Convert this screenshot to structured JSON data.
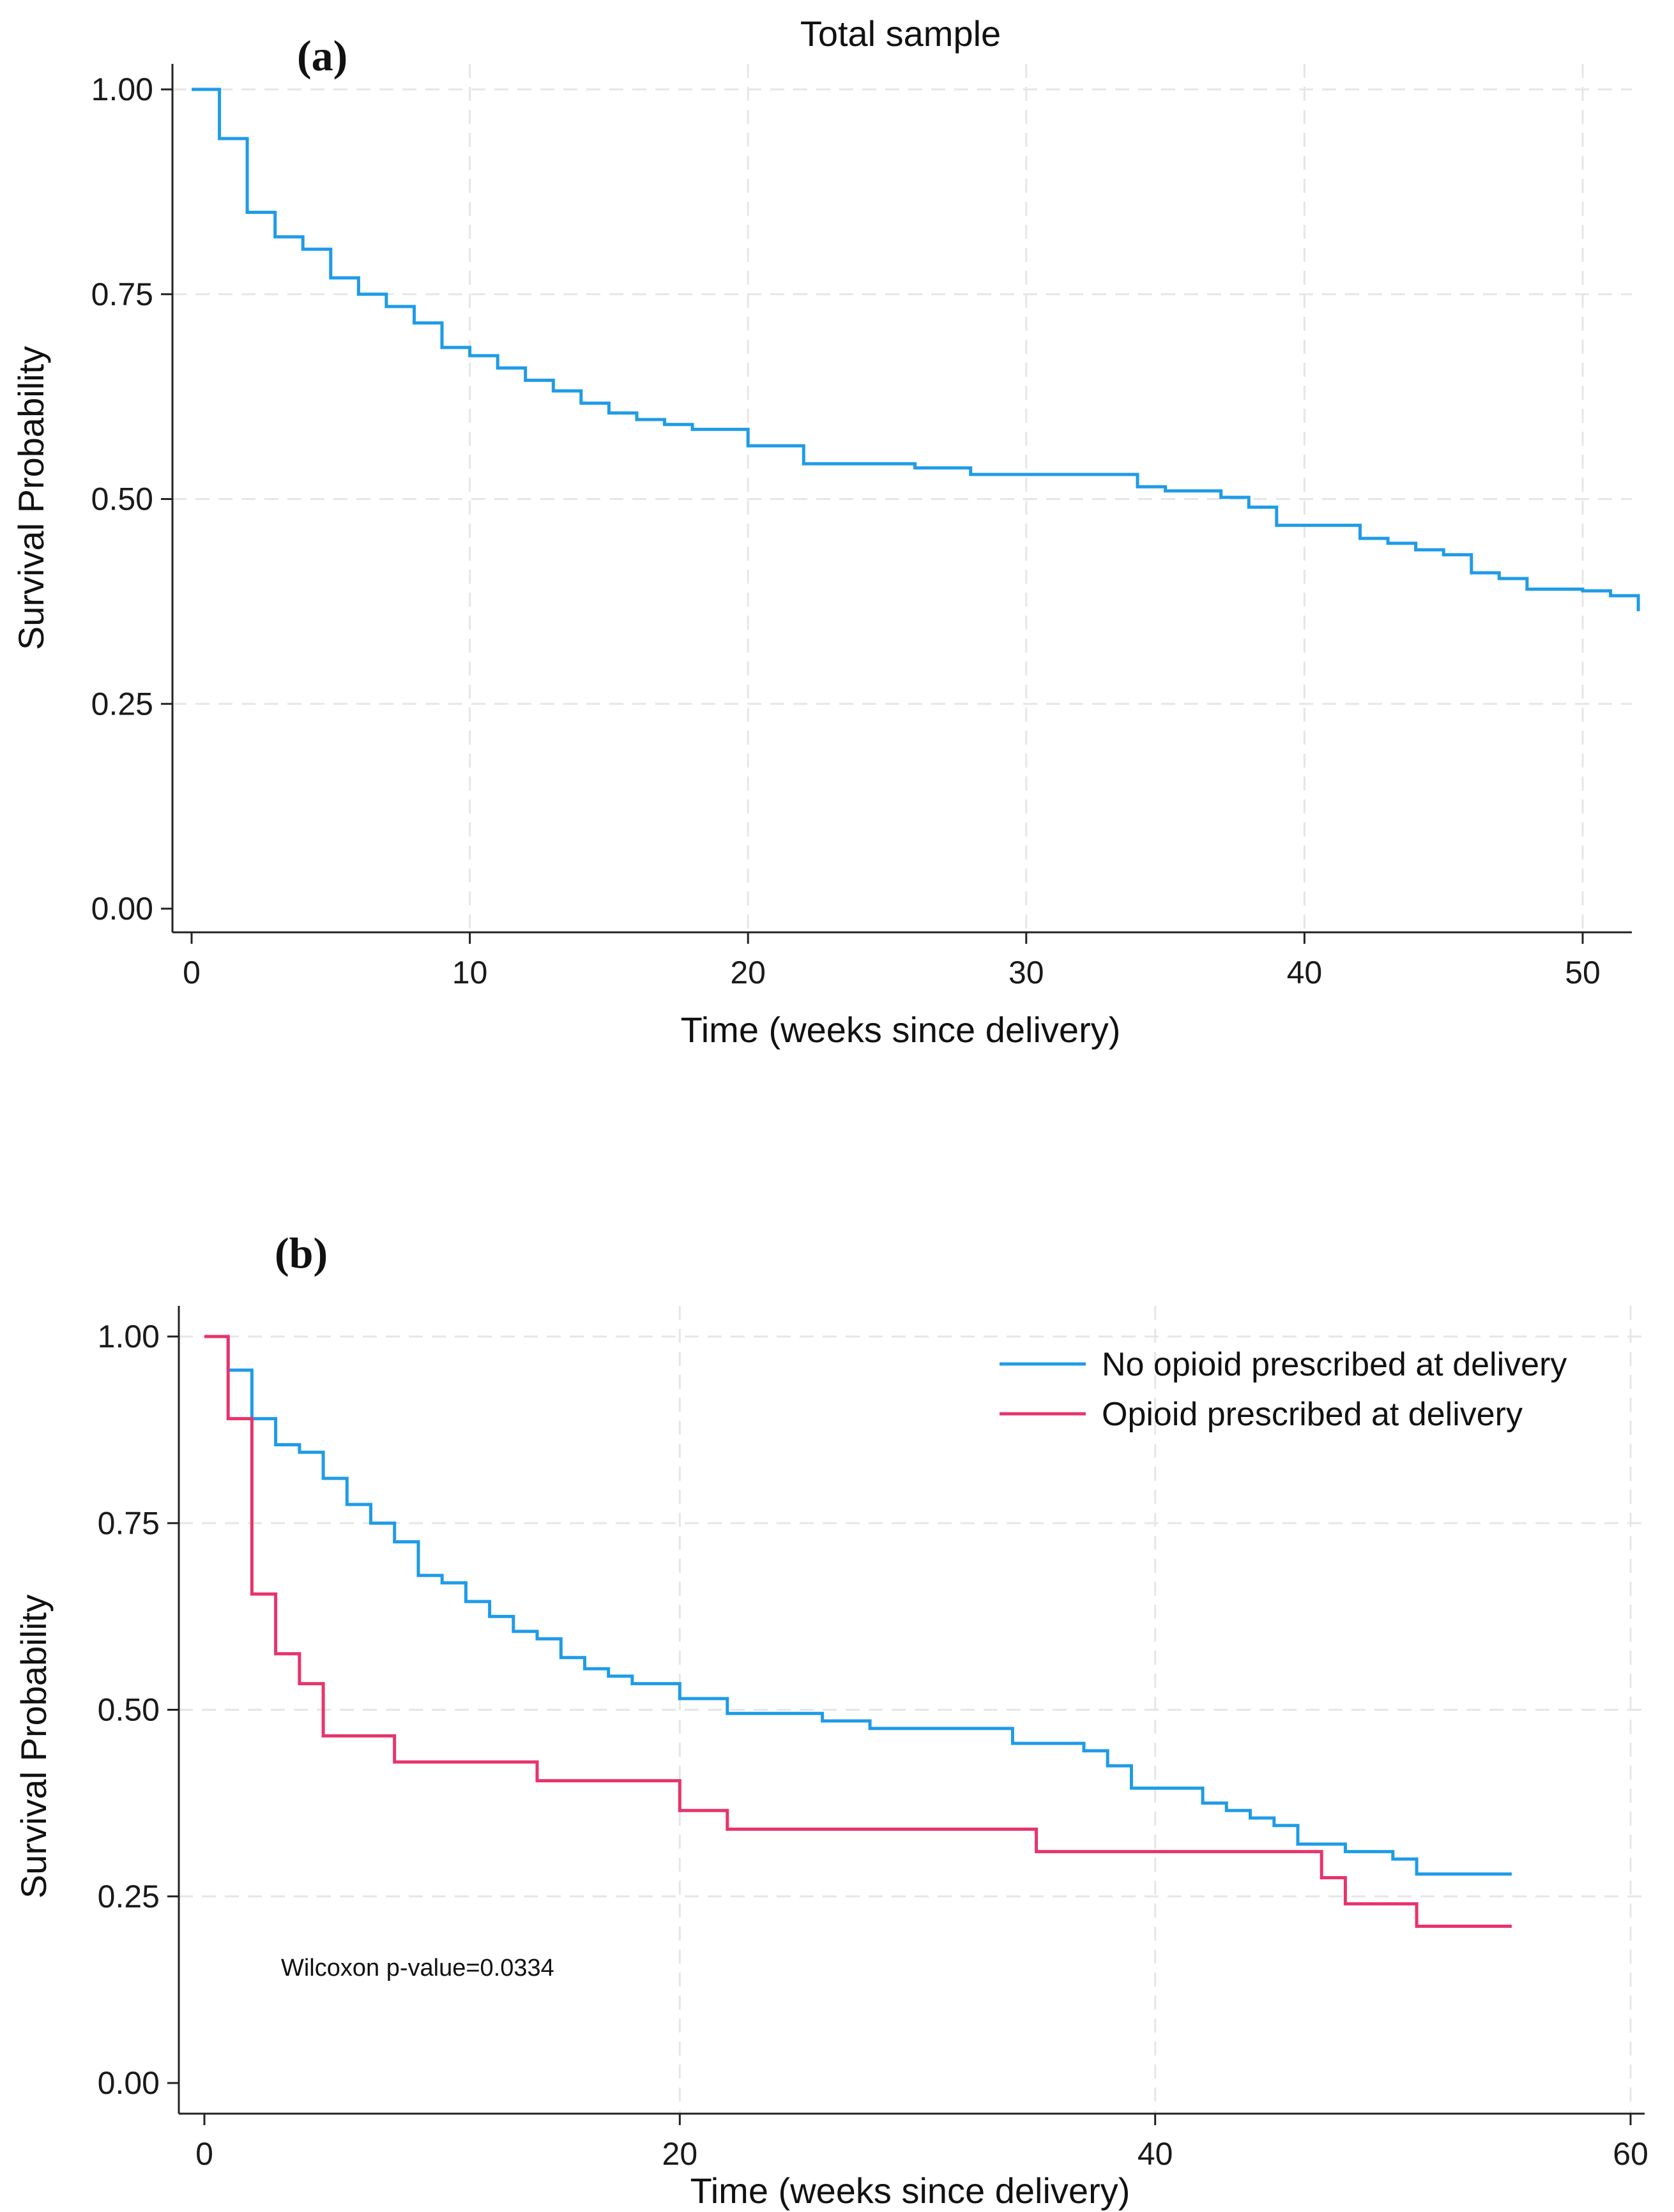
{
  "figure": {
    "panel_a_label": "(a)",
    "panel_b_label": "(b)"
  },
  "chart_data": [
    {
      "type": "line",
      "step": true,
      "title": "Total sample",
      "xlabel": "Time (weeks since delivery)",
      "ylabel": "Survival Probability",
      "xlim": [
        0,
        52
      ],
      "ylim": [
        0,
        1
      ],
      "xticks": [
        0,
        10,
        20,
        30,
        40,
        50
      ],
      "yticks": [
        0.0,
        0.25,
        0.5,
        0.75,
        1.0
      ],
      "xtick_labels": [
        "0",
        "10",
        "20",
        "30",
        "40",
        "50"
      ],
      "ytick_labels": [
        "0.00",
        "0.25",
        "0.50",
        "0.75",
        "1.00"
      ],
      "grid": true,
      "series": [
        {
          "name": "Total sample",
          "color": "#1f9be8",
          "x": [
            0,
            1,
            2,
            3,
            4,
            5,
            6,
            7,
            8,
            9,
            10,
            11,
            12,
            13,
            14,
            15,
            16,
            17,
            18,
            20,
            22,
            24,
            26,
            28,
            30,
            32,
            34,
            35,
            37,
            38,
            39,
            40,
            42,
            43,
            44,
            45,
            46,
            47,
            48,
            50,
            51,
            52
          ],
          "y": [
            1.0,
            0.94,
            0.85,
            0.82,
            0.805,
            0.77,
            0.75,
            0.735,
            0.715,
            0.685,
            0.675,
            0.66,
            0.645,
            0.632,
            0.617,
            0.605,
            0.597,
            0.591,
            0.585,
            0.565,
            0.543,
            0.543,
            0.538,
            0.53,
            0.53,
            0.53,
            0.515,
            0.51,
            0.502,
            0.49,
            0.468,
            0.468,
            0.452,
            0.446,
            0.438,
            0.432,
            0.41,
            0.403,
            0.39,
            0.388,
            0.382,
            0.363
          ]
        }
      ]
    },
    {
      "type": "line",
      "step": true,
      "title": "",
      "xlabel": "Time (weeks since delivery)",
      "ylabel": "Survival Probability",
      "xlim": [
        0,
        60
      ],
      "ylim": [
        0,
        1
      ],
      "xticks": [
        0,
        20,
        40,
        60
      ],
      "yticks": [
        0.0,
        0.25,
        0.5,
        0.75,
        1.0
      ],
      "xtick_labels": [
        "0",
        "20",
        "40",
        "60"
      ],
      "ytick_labels": [
        "0.00",
        "0.25",
        "0.50",
        "0.75",
        "1.00"
      ],
      "grid": true,
      "legend_position": "top-right",
      "annotation": "Wilcoxon p-value=0.0334",
      "series": [
        {
          "name": "No opioid prescribed at delivery",
          "color": "#1f9be8",
          "x": [
            0,
            1,
            2,
            3,
            4,
            5,
            6,
            7,
            8,
            9,
            10,
            11,
            12,
            13,
            14,
            15,
            16,
            17,
            18,
            20,
            22,
            24,
            26,
            28,
            30,
            32,
            34,
            36,
            37,
            38,
            39,
            40,
            42,
            43,
            44,
            45,
            46,
            48,
            50,
            51,
            55
          ],
          "y": [
            1.0,
            0.955,
            0.89,
            0.855,
            0.845,
            0.81,
            0.775,
            0.75,
            0.725,
            0.68,
            0.67,
            0.645,
            0.625,
            0.605,
            0.595,
            0.57,
            0.555,
            0.545,
            0.535,
            0.515,
            0.495,
            0.495,
            0.485,
            0.475,
            0.475,
            0.475,
            0.455,
            0.455,
            0.445,
            0.425,
            0.395,
            0.395,
            0.375,
            0.365,
            0.355,
            0.345,
            0.32,
            0.31,
            0.3,
            0.28,
            0.28
          ]
        },
        {
          "name": "Opioid prescribed at delivery",
          "color": "#e8336b",
          "x": [
            0,
            1,
            2,
            3,
            4,
            5,
            8,
            14,
            20,
            22,
            35,
            47,
            48,
            51,
            55
          ],
          "y": [
            1.0,
            0.89,
            0.655,
            0.575,
            0.535,
            0.465,
            0.43,
            0.405,
            0.365,
            0.34,
            0.31,
            0.275,
            0.24,
            0.21,
            0.21
          ]
        }
      ]
    }
  ]
}
